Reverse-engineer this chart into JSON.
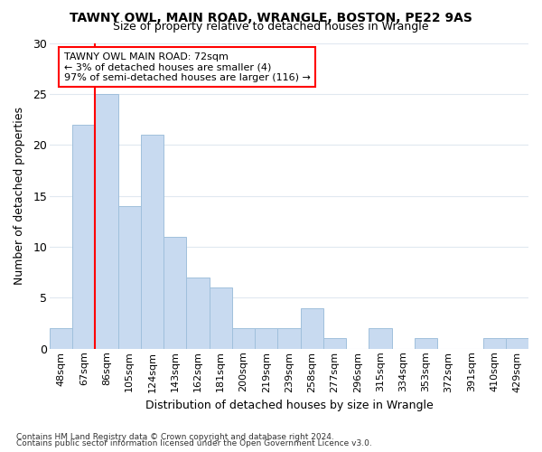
{
  "title": "TAWNY OWL, MAIN ROAD, WRANGLE, BOSTON, PE22 9AS",
  "subtitle": "Size of property relative to detached houses in Wrangle",
  "xlabel": "Distribution of detached houses by size in Wrangle",
  "ylabel": "Number of detached properties",
  "bar_color": "#c8daf0",
  "bar_edgecolor": "#a0c0dc",
  "categories": [
    "48sqm",
    "67sqm",
    "86sqm",
    "105sqm",
    "124sqm",
    "143sqm",
    "162sqm",
    "181sqm",
    "200sqm",
    "219sqm",
    "239sqm",
    "258sqm",
    "277sqm",
    "296sqm",
    "315sqm",
    "334sqm",
    "353sqm",
    "372sqm",
    "391sqm",
    "410sqm",
    "429sqm"
  ],
  "values": [
    2,
    22,
    25,
    14,
    21,
    11,
    7,
    6,
    2,
    2,
    2,
    4,
    1,
    0,
    2,
    0,
    1,
    0,
    0,
    1,
    1
  ],
  "ylim": [
    0,
    30
  ],
  "yticks": [
    0,
    5,
    10,
    15,
    20,
    25,
    30
  ],
  "red_line_x": 1.5,
  "annotation_title": "TAWNY OWL MAIN ROAD: 72sqm",
  "annotation_line1": "← 3% of detached houses are smaller (4)",
  "annotation_line2": "97% of semi-detached houses are larger (116) →",
  "footer_line1": "Contains HM Land Registry data © Crown copyright and database right 2024.",
  "footer_line2": "Contains public sector information licensed under the Open Government Licence v3.0.",
  "background_color": "#ffffff",
  "grid_color": "#e0e8f0"
}
